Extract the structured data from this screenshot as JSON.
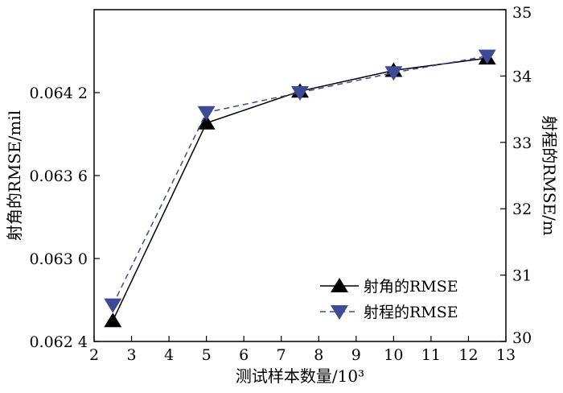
{
  "chart_data": {
    "type": "line",
    "xlabel": "测试样本数量/10³",
    "ylabel_left": "射角的RMSE/mil",
    "ylabel_right": "射程的RMSE/m",
    "xlim": [
      2,
      13
    ],
    "xticks": [
      2,
      3,
      4,
      5,
      6,
      7,
      8,
      9,
      10,
      11,
      12,
      13
    ],
    "x_tick_labels": [
      "2",
      "3",
      "4",
      "5",
      "6",
      "7",
      "8",
      "9",
      "10",
      "11",
      "12",
      "13"
    ],
    "ylim_left": [
      0.0624,
      0.0648
    ],
    "yticks_left": [
      0.0624,
      0.063,
      0.0636,
      0.0642
    ],
    "y_tick_labels_left": [
      "0.062 4",
      "0.063 0",
      "0.063 6",
      "0.064 2"
    ],
    "ylim_right": [
      30,
      35
    ],
    "yticks_right": [
      30,
      31,
      32,
      33,
      34,
      35
    ],
    "y_tick_labels_right": [
      "30",
      "31",
      "32",
      "33",
      "34",
      "35"
    ],
    "grid": false,
    "legend_position": "bottom-right",
    "series": [
      {
        "name": "射角的RMSE",
        "axis": "left",
        "color": "#000000",
        "line_style": "solid",
        "marker": "triangle-up",
        "x": [
          2.5,
          5,
          7.5,
          10,
          12.5
        ],
        "y": [
          0.06255,
          0.06398,
          0.06421,
          0.06436,
          0.06445
        ]
      },
      {
        "name": "射程的RMSE",
        "axis": "right",
        "color": "#3f4a96",
        "line_style": "dashed",
        "marker": "triangle-down",
        "x": [
          2.5,
          5,
          7.5,
          10,
          12.5
        ],
        "y": [
          30.55,
          33.45,
          33.75,
          34.05,
          34.3
        ]
      }
    ]
  }
}
